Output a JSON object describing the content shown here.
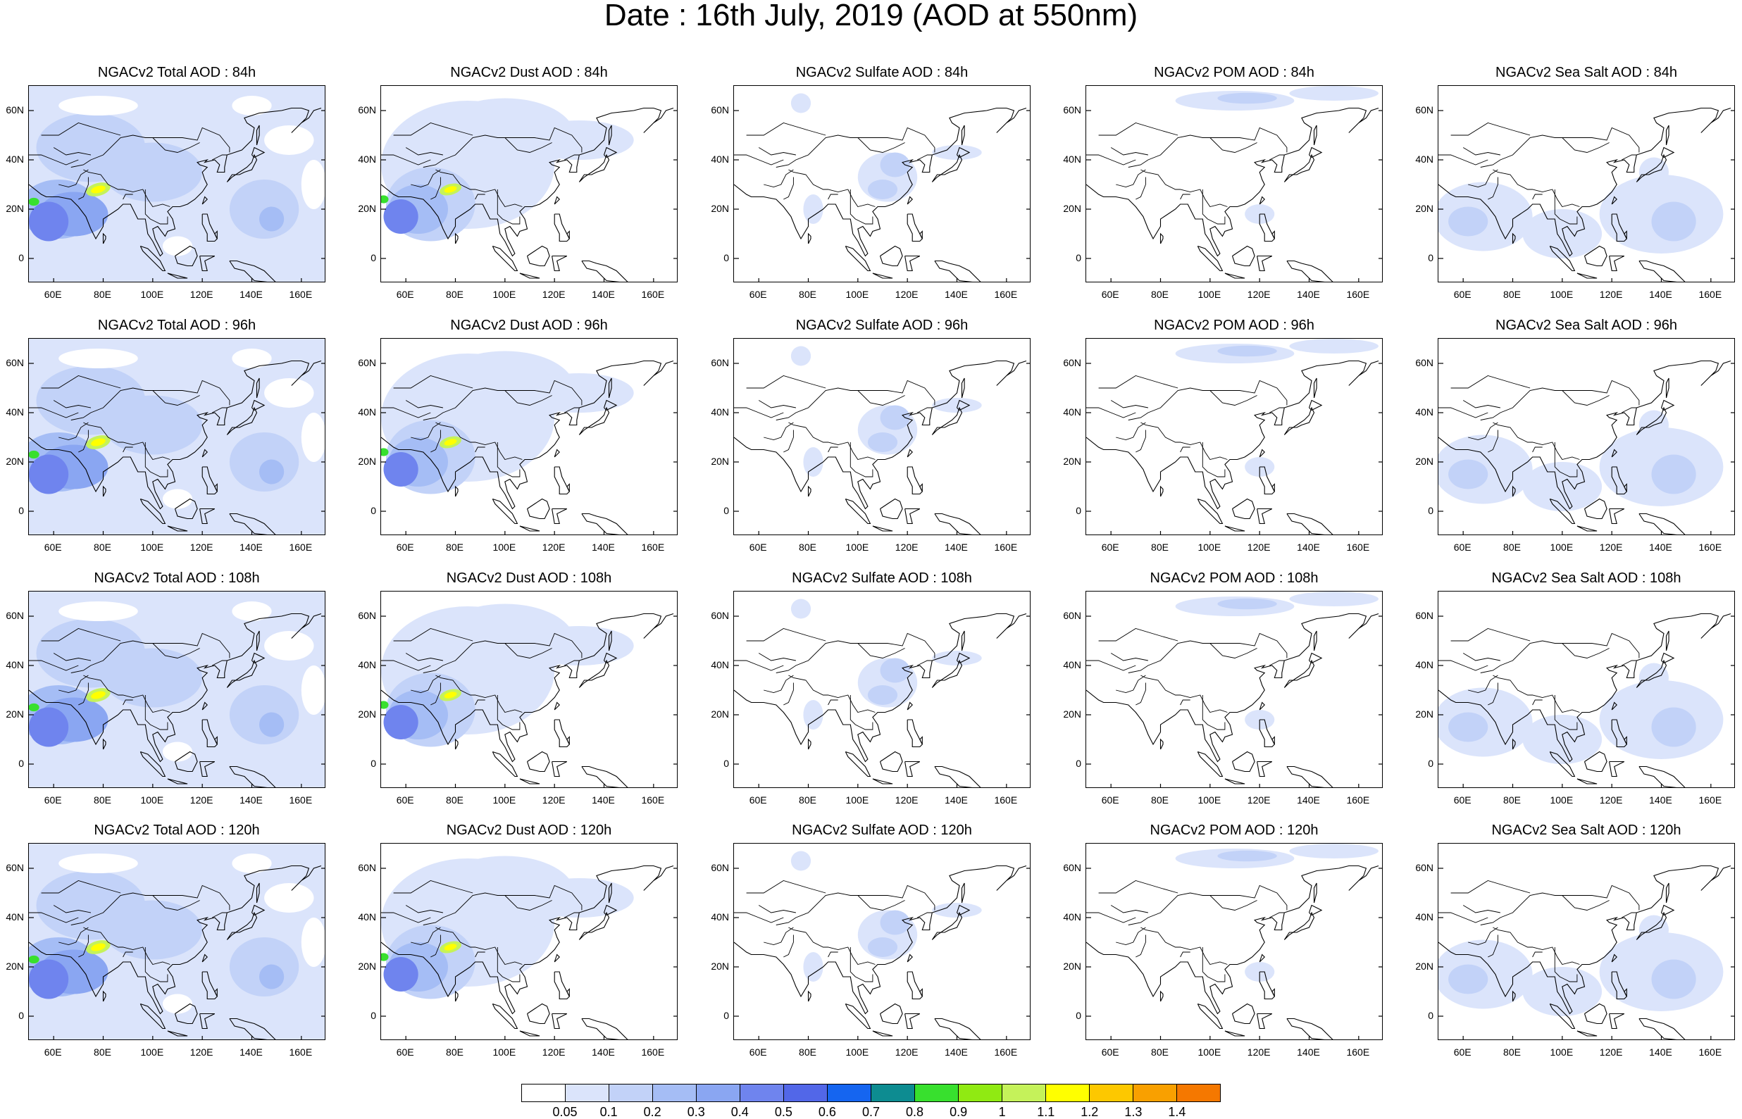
{
  "title": "Date : 16th July, 2019 (AOD at 550nm)",
  "axes": {
    "lat_ticks": [
      "60N",
      "40N",
      "20N",
      "0"
    ],
    "lon_ticks": [
      "60E",
      "80E",
      "100E",
      "120E",
      "140E",
      "160E"
    ],
    "lon_range": [
      50,
      170
    ],
    "lat_range": [
      -10,
      70
    ]
  },
  "panels": [
    {
      "title": "NGACv2 Total AOD : 84h",
      "field": "total"
    },
    {
      "title": "NGACv2 Dust AOD : 84h",
      "field": "dust"
    },
    {
      "title": "NGACv2 Sulfate AOD : 84h",
      "field": "sulfate"
    },
    {
      "title": "NGACv2 POM AOD : 84h",
      "field": "pom"
    },
    {
      "title": "NGACv2 Sea Salt AOD : 84h",
      "field": "seasalt"
    },
    {
      "title": "NGACv2 Total AOD : 96h",
      "field": "total"
    },
    {
      "title": "NGACv2 Dust AOD : 96h",
      "field": "dust"
    },
    {
      "title": "NGACv2 Sulfate AOD : 96h",
      "field": "sulfate"
    },
    {
      "title": "NGACv2 POM AOD : 96h",
      "field": "pom"
    },
    {
      "title": "NGACv2 Sea Salt AOD : 96h",
      "field": "seasalt"
    },
    {
      "title": "NGACv2 Total AOD : 108h",
      "field": "total"
    },
    {
      "title": "NGACv2 Dust AOD : 108h",
      "field": "dust"
    },
    {
      "title": "NGACv2 Sulfate AOD : 108h",
      "field": "sulfate"
    },
    {
      "title": "NGACv2 POM AOD : 108h",
      "field": "pom"
    },
    {
      "title": "NGACv2 Sea Salt AOD : 108h",
      "field": "seasalt"
    },
    {
      "title": "NGACv2 Total AOD : 120h",
      "field": "total"
    },
    {
      "title": "NGACv2 Dust AOD : 120h",
      "field": "dust"
    },
    {
      "title": "NGACv2 Sulfate AOD : 120h",
      "field": "sulfate"
    },
    {
      "title": "NGACv2 POM AOD : 120h",
      "field": "pom"
    },
    {
      "title": "NGACv2 Sea Salt  AOD : 120h",
      "field": "seasalt"
    }
  ],
  "colorbar": {
    "labels": [
      "0.05",
      "0.1",
      "0.2",
      "0.3",
      "0.4",
      "0.5",
      "0.6",
      "0.7",
      "0.8",
      "0.9",
      "1",
      "1.1",
      "1.2",
      "1.3",
      "1.4"
    ],
    "colors": [
      "#ffffff",
      "#dbe4fb",
      "#c2d2f8",
      "#a5bdf5",
      "#8aa6f2",
      "#6f84ee",
      "#5267e8",
      "#1565f0",
      "#0d8c91",
      "#38e02e",
      "#90ea12",
      "#c5f25a",
      "#ffff00",
      "#fdc800",
      "#f9a000",
      "#f57800",
      "#f20000"
    ]
  }
}
